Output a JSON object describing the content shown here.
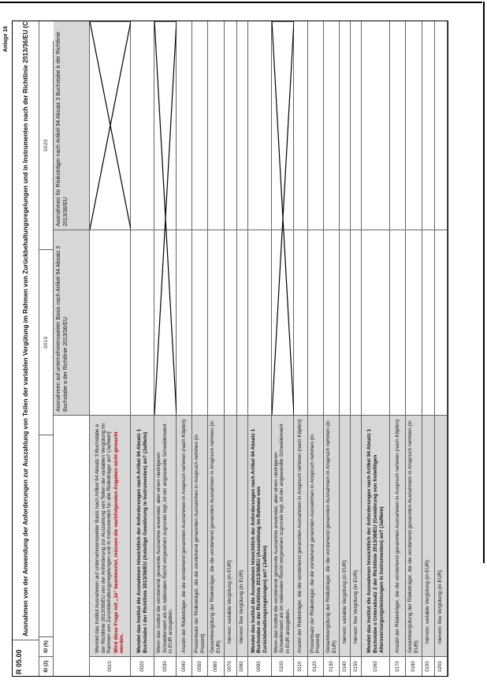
{
  "page": {
    "annex_label": "Anlage 16"
  },
  "colors": {
    "label_fill": "#d7d7d7",
    "grid_line": "#666666",
    "outer_border": "#000000",
    "note_red": "#c00000"
  },
  "form": {
    "code": "R 05.00",
    "title": "Ausnahmen von der Anwendung der Anforderungen zur Auszahlung von Teilen der variablen Vergütung im Rahmen von Zurückbehaltungsregelungen und in Instrumenten nach der Richtlinie 2013/36/EU (CRD)",
    "row_id_header": "ID (Z)",
    "col_id_header": "ID (S)",
    "columns": [
      {
        "id": "0010",
        "header": "Ausnahmen auf unternehmensweiter Basis nach Artikel 94 Absatz 3 Buchstabe a der Richtlinie 2013/36/EU"
      },
      {
        "id": "0020",
        "header": "Ausnahmen für Risikoträger nach Artikel 94 Absatz 3 Buchstabe b der Richtlinie 2013/36/EU"
      }
    ],
    "rows": [
      {
        "id": "0010",
        "label": "Wendet das Institut Ausnahmen auf unternehmensweiter Basis nach Artikel 94 Absatz 3 Buchstabe a der Richtlinie 2013/36/EU von der Anforderung zur Auszahlung von Teilen der variablen Vergütung im Rahmen von Zurückbehaltungsregelungen und in Instrumenten für alle Risikoträger an? (Ja/Nein)",
        "note": "Wird diese Frage mit „Ja“ beantwortet, müssen die nachfolgenden Angaben nicht gemacht werden.",
        "bold": false,
        "indent": false,
        "cross": "col2"
      },
      {
        "id": "0020",
        "label": "Wendet das Institut die Ausnahmen hinsichtlich der Anforderungen nach Artikel 94 Absatz 1 Buchstabe l der Richtlinie 2013/36/EU (Anteilige Gewährung in Instrumenten) an? (Ja/Nein)",
        "note": "",
        "bold": true,
        "indent": false,
        "cross": "none"
      },
      {
        "id": "0030",
        "label": "Wenn das Institut die vorstehend genannte Ausnahme anwendet, aber einen niedrigeren Schwellenwert als im nationalen Recht vorgesehen zugrunde legt, ist der angewandte Schwellenwert in EUR anzugeben.",
        "note": "",
        "bold": false,
        "indent": false,
        "cross": "both"
      },
      {
        "id": "0040",
        "label": "Anzahl der Risikoträger, die die vorstehend genannten Ausnahmen in Anspruch nehmen (nach Köpfen)",
        "note": "",
        "bold": false,
        "indent": false,
        "cross": "none"
      },
      {
        "id": "0050",
        "label": "Prozentsatz der Risikoträger, die die vorstehend genannten Ausnahmen in Anspruch nehmen (in Prozent)",
        "note": "",
        "bold": false,
        "indent": false,
        "cross": "none"
      },
      {
        "id": "0060",
        "label": "Gesamtvergütung der Risikoträger, die die vorstehend genannten Ausnahmen in Anspruch nehmen (in EUR)",
        "note": "",
        "bold": false,
        "indent": false,
        "cross": "none"
      },
      {
        "id": "0070",
        "label": "hiervon: variable Vergütung (in EUR)",
        "note": "",
        "bold": false,
        "indent": true,
        "cross": "none"
      },
      {
        "id": "0080",
        "label": "hiervon: fixe Vergütung (in EUR)",
        "note": "",
        "bold": false,
        "indent": true,
        "cross": "none"
      },
      {
        "id": "0090",
        "label": "Wendet das Institut die Ausnahmen hinsichtlich der Anforderungen nach Artikel 94 Absatz 1 Buchstabe m der Richtlinie 2013/36/EU (Auszahlung im Rahmen von Zurückbehaltungsregelungen) an? (Ja/Nein)",
        "note": "",
        "bold": true,
        "indent": false,
        "cross": "none"
      },
      {
        "id": "0100",
        "label": "Wenn das Institut die vorstehend genannte Ausnahme anwendet, aber einen niedrigeren Schwellenwert als im nationalen Recht vorgesehen zugrunde legt, ist der angewandte Schwellenwert in EUR anzugeben.",
        "note": "",
        "bold": false,
        "indent": false,
        "cross": "both"
      },
      {
        "id": "0110",
        "label": "Anzahl der Risikoträger, die die vorstehend genannten Ausnahmen in Anspruch nehmen (nach Köpfen)",
        "note": "",
        "bold": false,
        "indent": false,
        "cross": "none"
      },
      {
        "id": "0120",
        "label": "Prozentsatz der Risikoträger, die die vorstehend genannten Ausnahmen in Anspruch nehmen (in Prozent)",
        "note": "",
        "bold": false,
        "indent": false,
        "cross": "none"
      },
      {
        "id": "0130",
        "label": "Gesamtvergütung der Risikoträger, die die vorstehend genannten Ausnahmen in Anspruch nehmen (in EUR)",
        "note": "",
        "bold": false,
        "indent": false,
        "cross": "none"
      },
      {
        "id": "0140",
        "label": "hiervon: variable Vergütung (in EUR)",
        "note": "",
        "bold": false,
        "indent": true,
        "cross": "none"
      },
      {
        "id": "0150",
        "label": "hiervon: fixe Vergütung (in EUR)",
        "note": "",
        "bold": false,
        "indent": true,
        "cross": "none"
      },
      {
        "id": "0160",
        "label": "Wendet das Institut die Ausnahmen hinsichtlich der Anforderungen nach Artikel 94 Absatz 1 Buchstabe o Unterabsatz 2 der Richtlinie 2013/36/EU (Gewährung von freiwilligen Altersversorgungsleistungen in Instrumenten) an? (Ja/Nein)",
        "note": "",
        "bold": true,
        "indent": false,
        "cross": "none"
      },
      {
        "id": "0170",
        "label": "Anzahl der Risikoträger, die die vorstehend genannten Ausnahmen in Anspruch nehmen (nach Köpfen)",
        "note": "",
        "bold": false,
        "indent": false,
        "cross": "none"
      },
      {
        "id": "0180",
        "label": "Gesamtvergütung der Risikoträger, die die vorstehend genannten Ausnahmen in Anspruch nehmen (in EUR)",
        "note": "",
        "bold": false,
        "indent": false,
        "cross": "none"
      },
      {
        "id": "0190",
        "label": "hiervon: variable Vergütung (in EUR)",
        "note": "",
        "bold": false,
        "indent": true,
        "cross": "none"
      },
      {
        "id": "0200",
        "label": "hiervon: fixe Vergütung (in EUR)",
        "note": "",
        "bold": false,
        "indent": true,
        "cross": "none"
      }
    ]
  }
}
